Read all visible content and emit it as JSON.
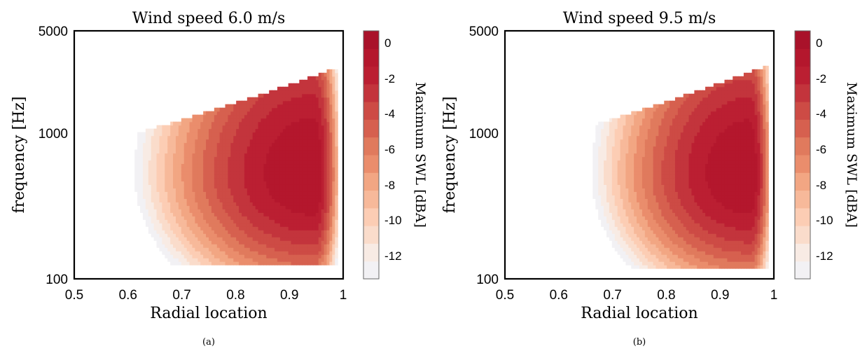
{
  "chart_data": [
    {
      "type": "heatmap",
      "title": "Wind speed 6.0 m/s",
      "caption": "(a)",
      "xlabel": "Radial location",
      "ylabel": "frequency [Hz]",
      "xlim": [
        0.5,
        1.0
      ],
      "ylim": [
        100,
        5000
      ],
      "y_scale": "log",
      "x_ticks": [
        "0.5",
        "0.6",
        "0.7",
        "0.8",
        "0.9",
        "1"
      ],
      "y_ticks": [
        "100",
        "1000",
        "5000"
      ],
      "colorbar_label": "Maximum SWL [dBA]",
      "colorbar_ticks": [
        "0",
        "-2",
        "-4",
        "-6",
        "-8",
        "-10",
        "-12"
      ],
      "colorbar_range": [
        -13,
        1
      ],
      "peak": {
        "r": 0.945,
        "f": 520,
        "level_dBA": 0
      },
      "field": {
        "r_left_edge": 0.5,
        "r_right_edge": 0.99,
        "f_min": 125,
        "f_max_at_tip": 2900,
        "f_max_at_root": 800,
        "f_spread_decades": [
          0.68,
          0.95
        ],
        "r_spread": [
          0.085,
          0.014
        ]
      }
    },
    {
      "type": "heatmap",
      "title": "Wind speed 9.5 m/s",
      "caption": "(b)",
      "xlabel": "Radial location",
      "ylabel": "frequency [Hz]",
      "xlim": [
        0.5,
        1.0
      ],
      "ylim": [
        100,
        5000
      ],
      "y_scale": "log",
      "x_ticks": [
        "0.5",
        "0.6",
        "0.7",
        "0.8",
        "0.9",
        "1"
      ],
      "y_ticks": [
        "100",
        "1000",
        "5000"
      ],
      "colorbar_label": "Maximum SWL [dBA]",
      "colorbar_ticks": [
        "0",
        "-2",
        "-4",
        "-6",
        "-8",
        "-10",
        "-12"
      ],
      "colorbar_range": [
        -13,
        1
      ],
      "peak": {
        "r": 0.955,
        "f": 520,
        "level_dBA": 0
      },
      "field": {
        "r_left_edge": 0.5,
        "r_right_edge": 0.99,
        "f_min": 115,
        "f_max_at_tip": 3000,
        "f_max_at_root": 800,
        "f_spread_decades": [
          0.66,
          0.92
        ],
        "r_spread": [
          0.075,
          0.012
        ]
      }
    }
  ],
  "palette": [
    "#f2f1f4",
    "#f8ebe4",
    "#fadccb",
    "#fccdb4",
    "#f7b99a",
    "#f2a683",
    "#ea8d6c",
    "#e07a5d",
    "#d6604f",
    "#cd4b45",
    "#c3343c",
    "#bb1f32",
    "#b4172d",
    "#a9122a"
  ]
}
